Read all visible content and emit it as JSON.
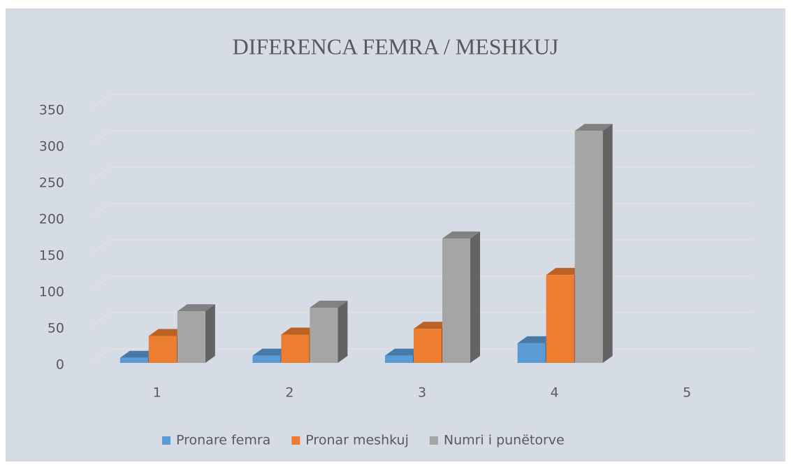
{
  "chart_data": {
    "type": "bar3d",
    "title": "DIFERENCA FEMRA / MESHKUJ",
    "categories": [
      "1",
      "2",
      "3",
      "4",
      "5"
    ],
    "series": [
      {
        "name": "Pronare femra",
        "color": "#5b9bd5",
        "values": [
          7,
          10,
          10,
          27,
          null
        ]
      },
      {
        "name": "Pronar meshkuj",
        "color": "#ed7d31",
        "values": [
          37,
          39,
          47,
          121,
          null
        ]
      },
      {
        "name": "Numri i punëtorve",
        "color": "#a5a5a5",
        "values": [
          71,
          76,
          171,
          319,
          null
        ]
      }
    ],
    "ylim": [
      0,
      350
    ],
    "yticks": [
      0,
      50,
      100,
      150,
      200,
      250,
      300,
      350
    ],
    "grid": true,
    "legend": "bottom"
  }
}
